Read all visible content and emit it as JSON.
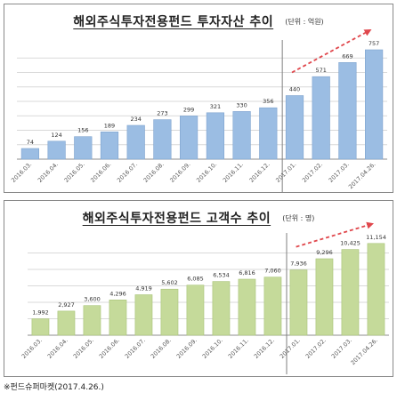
{
  "chart_data": [
    {
      "type": "bar",
      "title": "해외주식투자전용펀드 투자자산 추이",
      "unit": "(단위 : 억원)",
      "categories": [
        "2016.03.",
        "2016.04.",
        "2016.05.",
        "2016.06.",
        "2016.07.",
        "2016.08.",
        "2016.09.",
        "2016.10.",
        "2016.11.",
        "2016.12.",
        "2017.01.",
        "2017.02.",
        "2017.03.",
        "2017.04.26."
      ],
      "values": [
        74,
        124,
        156,
        189,
        234,
        273,
        299,
        321,
        330,
        356,
        440,
        571,
        669,
        757
      ],
      "ylim": [
        0,
        800
      ],
      "grid": true,
      "colors": {
        "bar": "#9bbde3",
        "bar_edge": "#7fa4cf",
        "grid": "#d9d9d9",
        "arrow": "#e0474c",
        "divider": "#7f7f7f"
      }
    },
    {
      "type": "bar",
      "title": "해외주식투자전용펀드 고객수 추이",
      "unit": "(단위 : 명)",
      "categories": [
        "2016.03.",
        "2016.04.",
        "2016.05.",
        "2016.06.",
        "2016.07.",
        "2016.08.",
        "2016.09.",
        "2016.10.",
        "2016.11.",
        "2016.12.",
        "2017.01.",
        "2017.02.",
        "2017.03.",
        "2017.04.26."
      ],
      "values": [
        1992,
        2927,
        3600,
        4296,
        4919,
        5602,
        6085,
        6534,
        6816,
        7060,
        7936,
        9296,
        10425,
        11154
      ],
      "labels": [
        "1,992",
        "2,927",
        "3,600",
        "4,296",
        "4,919",
        "5,602",
        "6,085",
        "6,534",
        "6,816",
        "7,060",
        "7,936",
        "9,296",
        "10,425",
        "11,154"
      ],
      "ylim": [
        0,
        12000
      ],
      "grid": true,
      "colors": {
        "bar": "#c5da9a",
        "bar_edge": "#a9c478",
        "grid": "#d9d9d9",
        "arrow": "#e0474c",
        "divider": "#7f7f7f"
      }
    }
  ],
  "footnote": "※펀드슈퍼마켓(2017.4.26.)"
}
